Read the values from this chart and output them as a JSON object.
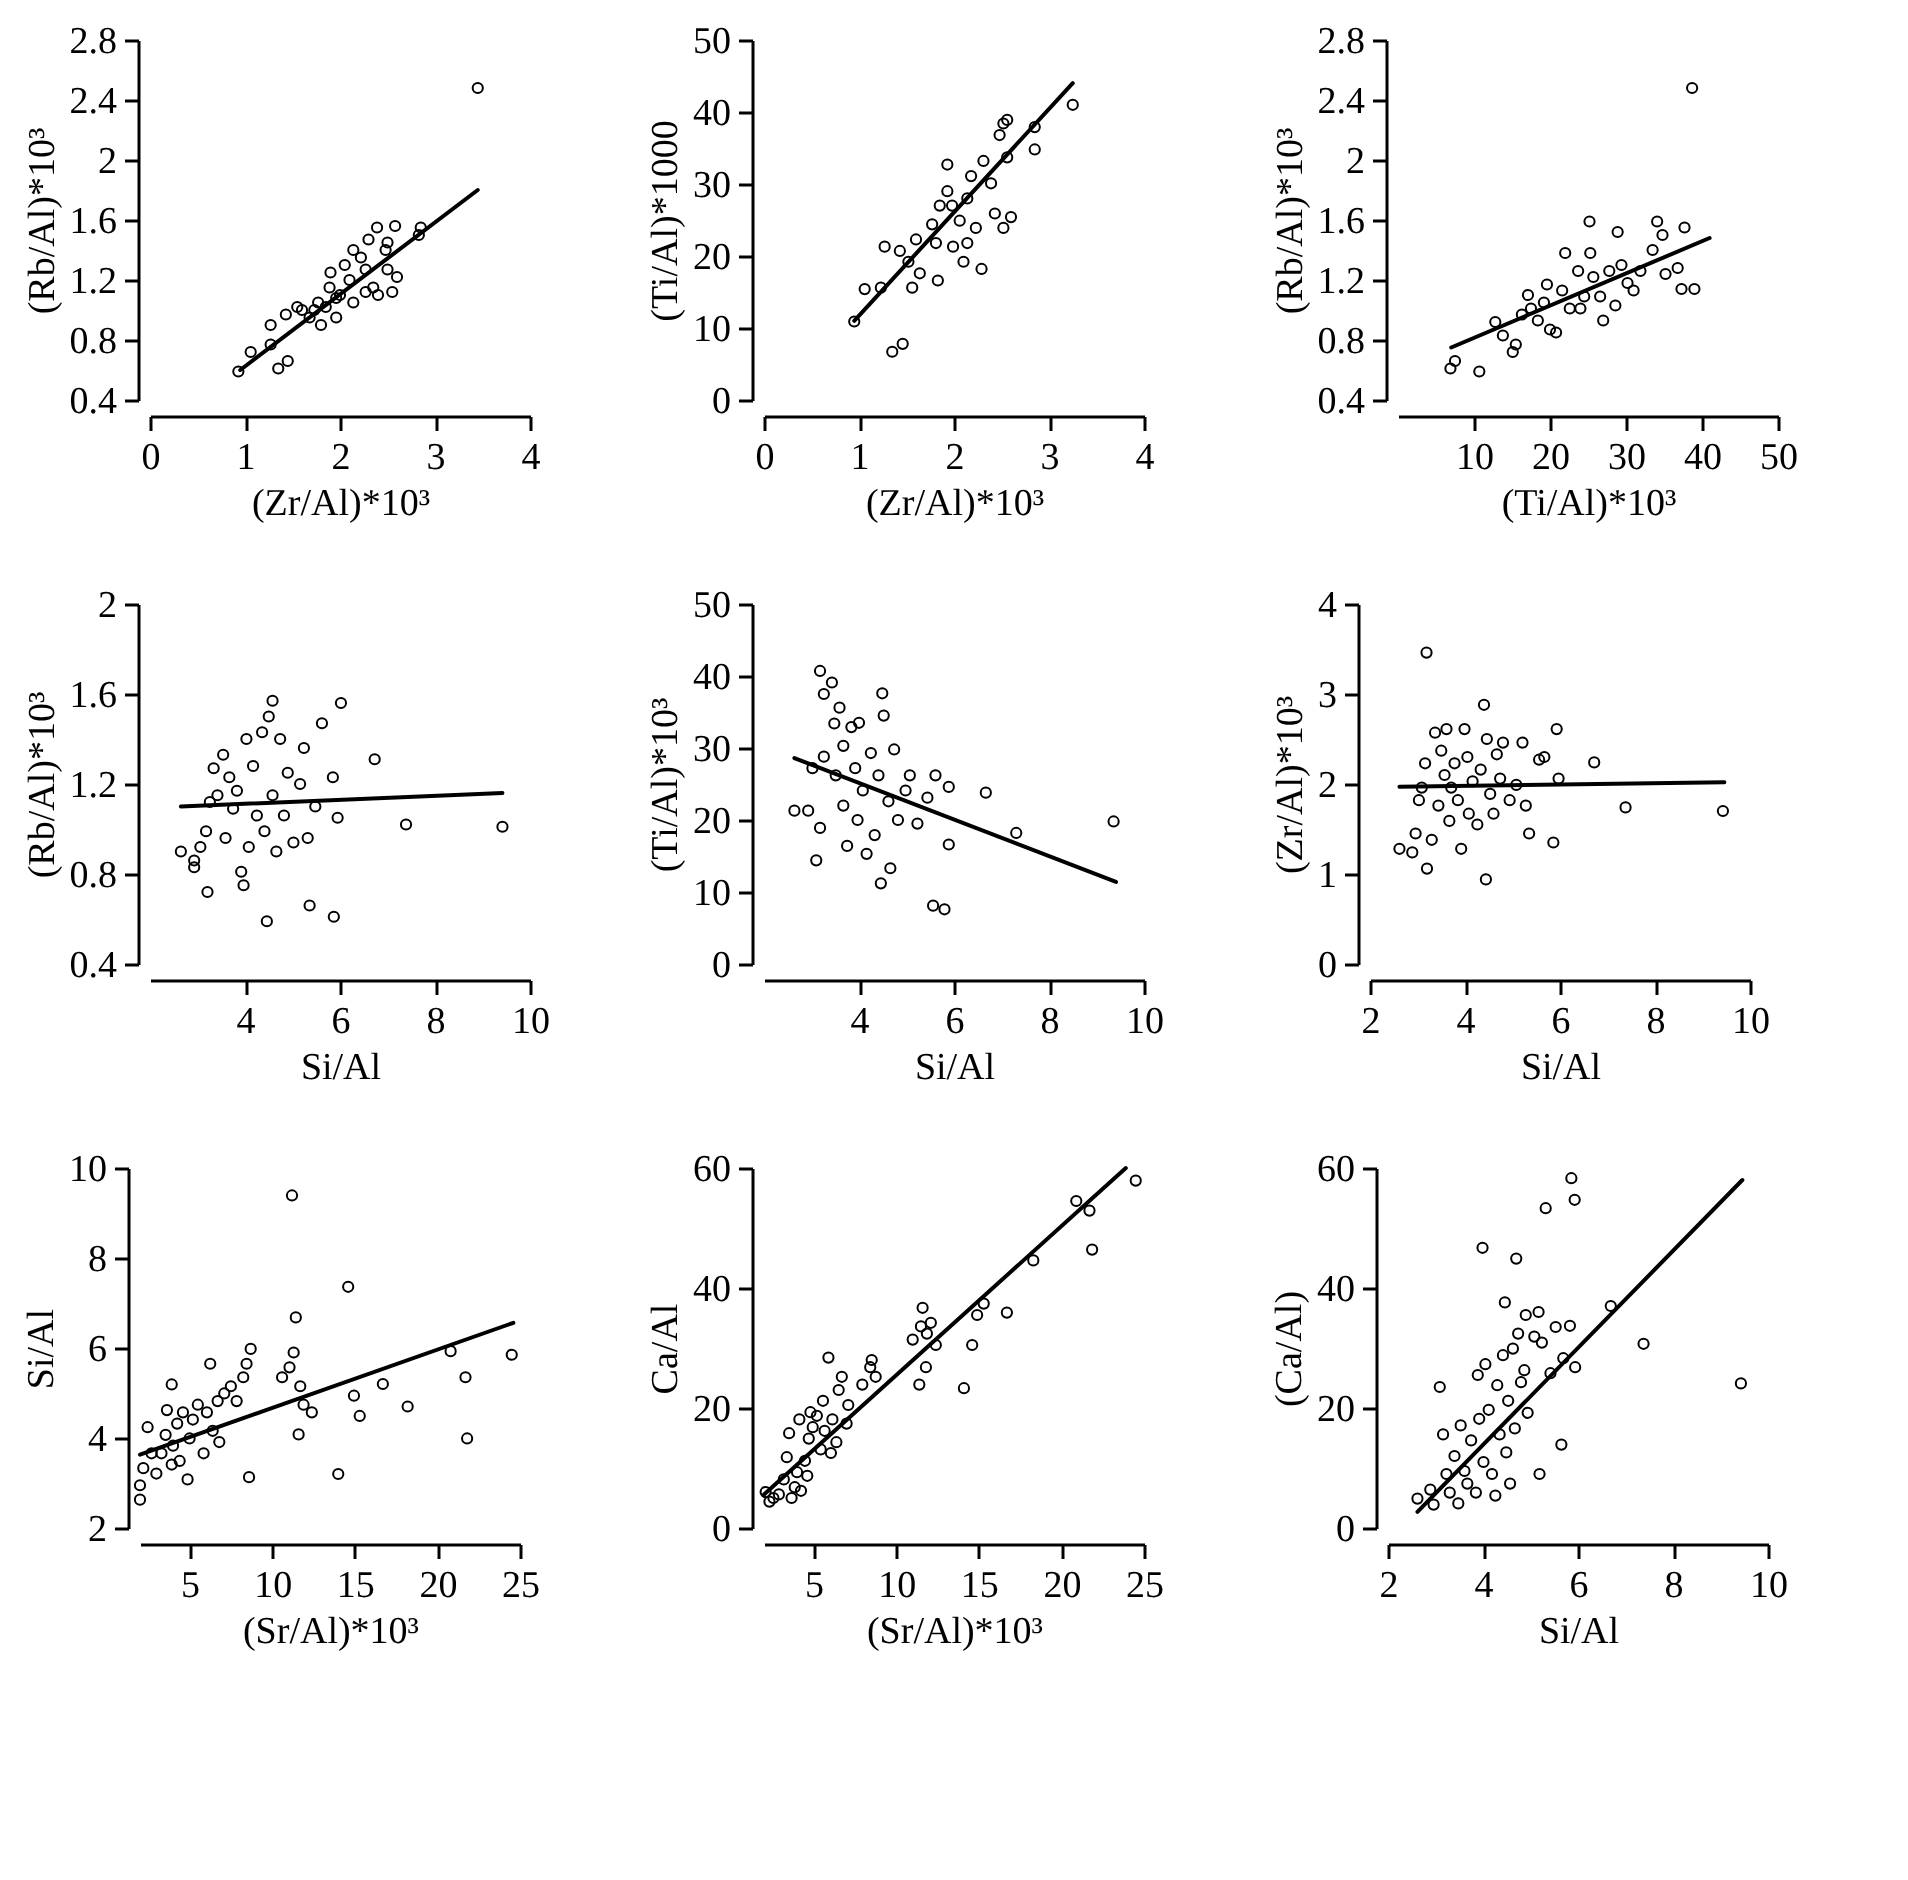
{
  "chart_data": [
    {
      "type": "scatter",
      "xlabel": "(Zr/Al)*10³",
      "ylabel": "(Rb/Al)*10³",
      "xlim": [
        0,
        4
      ],
      "xticks": [
        0,
        1,
        2,
        3,
        4
      ],
      "ylim": [
        0.4,
        2.8
      ],
      "yticks": [
        0.4,
        0.8,
        1.2,
        1.6,
        2,
        2.4,
        2.8
      ],
      "series": [
        {
          "color": "#000000",
          "marker": "circle",
          "x": [
            0.93,
            1.06,
            1.27,
            1.27,
            1.35,
            1.45,
            1.43,
            1.55,
            1.68,
            1.77,
            1.8,
            1.89,
            1.9,
            1.96,
            2.0,
            2.1,
            2.14,
            2.22,
            2.27,
            2.3,
            2.39,
            2.4,
            2.48,
            2.5,
            2.55,
            2.58,
            2.6,
            2.5,
            2.85,
            2.83,
            3.45,
            1.6,
            1.85,
            2.14,
            2.27,
            2.35,
            1.96,
            1.73,
            2.05
          ],
          "values": [
            0.59,
            0.72,
            0.77,
            0.9,
            0.61,
            0.66,
            0.97,
            1.02,
            0.95,
            1.05,
            0.9,
            1.15,
            1.25,
            0.95,
            1.1,
            1.2,
            1.05,
            1.35,
            1.12,
            1.47,
            1.55,
            1.1,
            1.4,
            1.27,
            1.12,
            1.56,
            1.22,
            1.45,
            1.55,
            1.5,
            2.48,
            1.0,
            1.02,
            1.4,
            1.27,
            1.15,
            1.08,
            1.0,
            1.3
          ]
        },
        {
          "type": "line",
          "color": "#000000",
          "x": [
            0.95,
            3.45
          ],
          "values": [
            0.6,
            1.8
          ]
        }
      ]
    },
    {
      "type": "scatter",
      "xlabel": "(Zr/Al)*10³",
      "ylabel": "(Ti/Al)*1000",
      "xlim": [
        0,
        4
      ],
      "xticks": [
        0,
        1,
        2,
        3,
        4
      ],
      "ylim": [
        0,
        50
      ],
      "yticks": [
        0,
        10,
        20,
        30,
        40,
        50
      ],
      "series": [
        {
          "color": "#000000",
          "marker": "circle",
          "x": [
            0.95,
            1.06,
            1.23,
            1.27,
            1.35,
            1.46,
            1.43,
            1.52,
            1.6,
            1.64,
            1.77,
            1.83,
            1.85,
            1.93,
            1.99,
            2.06,
            2.1,
            2.14,
            2.18,
            2.23,
            2.29,
            2.31,
            2.39,
            2.43,
            2.48,
            2.52,
            2.56,
            2.52,
            2.6,
            2.56,
            2.85,
            2.85,
            3.25,
            1.81,
            1.98,
            2.14,
            1.56,
            1.93
          ],
          "values": [
            10.9,
            15.4,
            15.6,
            21.3,
            6.7,
            7.8,
            20.7,
            19.2,
            22.3,
            17.6,
            24.4,
            16.6,
            27,
            29,
            21.3,
            24.9,
            19.2,
            28,
            31.1,
            23.9,
            18.2,
            33.2,
            30.1,
            25.9,
            36.8,
            38.4,
            38.9,
            23.9,
            25.4,
            33.7,
            37.9,
            34.8,
            41,
            21.8,
            27,
            21.8,
            15.6,
            32.7
          ]
        },
        {
          "type": "line",
          "color": "#000000",
          "x": [
            0.95,
            3.25
          ],
          "values": [
            11,
            44
          ]
        }
      ]
    },
    {
      "type": "scatter",
      "xlabel": "(Ti/Al)*10³",
      "ylabel": "(Rb/Al)*10³",
      "xlim": [
        0,
        50
      ],
      "xticks": [
        10,
        20,
        30,
        40,
        50
      ],
      "ylim": [
        0.4,
        2.8
      ],
      "yticks": [
        0.4,
        0.8,
        1.2,
        1.6,
        2,
        2.4,
        2.8
      ],
      "series": [
        {
          "color": "#000000",
          "marker": "circle",
          "x": [
            6.9,
            7.5,
            10.7,
            12.8,
            13.8,
            15.1,
            15.5,
            16.3,
            17.1,
            18.4,
            19.2,
            19.6,
            20,
            20.8,
            21.6,
            22,
            22.6,
            23.7,
            24.5,
            25.2,
            25.3,
            25.7,
            26.6,
            27,
            27.8,
            28.6,
            28.9,
            29.4,
            30.2,
            31,
            31.9,
            33.5,
            34.1,
            34.8,
            35.2,
            36.8,
            37.7,
            37.3,
            39,
            38.7,
            24,
            17.5
          ],
          "values": [
            0.61,
            0.66,
            0.59,
            0.92,
            0.83,
            0.72,
            0.77,
            0.97,
            1.1,
            0.93,
            1.05,
            1.17,
            0.87,
            0.85,
            1.13,
            1.38,
            1.01,
            1.26,
            1.09,
            1.59,
            1.38,
            1.22,
            1.09,
            0.93,
            1.26,
            1.03,
            1.52,
            1.3,
            1.18,
            1.13,
            1.26,
            1.4,
            1.59,
            1.5,
            1.24,
            1.28,
            1.55,
            1.14,
            1.14,
            2.48,
            1.01,
            1.01
          ]
        },
        {
          "type": "line",
          "color": "#000000",
          "x": [
            7,
            41
          ],
          "values": [
            0.75,
            1.48
          ]
        }
      ]
    },
    {
      "type": "scatter",
      "xlabel": "Si/Al",
      "ylabel": "(Rb/Al)*10³",
      "xlim": [
        2,
        10
      ],
      "xticks": [
        4,
        6,
        8,
        10
      ],
      "ylim": [
        0.4,
        2
      ],
      "yticks": [
        0.4,
        0.8,
        1.2,
        1.6,
        2
      ],
      "series": [
        {
          "color": "#000000",
          "marker": "circle",
          "x": [
            2.65,
            2.93,
            2.93,
            3.06,
            3.21,
            3.18,
            3.26,
            3.34,
            3.42,
            3.54,
            3.59,
            3.67,
            3.75,
            3.83,
            3.92,
            3.97,
            4.03,
            4.08,
            4.17,
            4.25,
            4.36,
            4.41,
            4.46,
            4.5,
            4.58,
            4.58,
            4.66,
            4.74,
            4.82,
            4.9,
            5.02,
            5.16,
            5.24,
            5.32,
            5.36,
            5.48,
            5.62,
            5.85,
            5.87,
            5.95,
            6.02,
            6.73,
            7.39,
            9.42
          ],
          "values": [
            0.9,
            0.86,
            0.83,
            0.92,
            0.72,
            0.99,
            1.12,
            1.27,
            1.15,
            1.33,
            0.96,
            1.23,
            1.09,
            1.17,
            0.81,
            0.75,
            1.4,
            0.92,
            1.28,
            1.06,
            1.43,
            0.99,
            0.59,
            1.5,
            1.57,
            1.15,
            0.9,
            1.4,
            1.06,
            1.25,
            0.94,
            1.2,
            1.36,
            0.96,
            0.66,
            1.1,
            1.47,
            1.23,
            0.61,
            1.05,
            1.56,
            1.31,
            1.02,
            1.01
          ]
        },
        {
          "type": "line",
          "color": "#000000",
          "x": [
            2.65,
            9.42
          ],
          "values": [
            1.1,
            1.16
          ]
        }
      ]
    },
    {
      "type": "scatter",
      "xlabel": "Si/Al",
      "ylabel": "(Ti/Al)*10³",
      "xlim": [
        2,
        10
      ],
      "xticks": [
        4,
        6,
        8,
        10
      ],
      "ylim": [
        0,
        50
      ],
      "yticks": [
        0,
        10,
        20,
        30,
        40,
        50
      ],
      "series": [
        {
          "color": "#000000",
          "marker": "circle",
          "x": [
            2.64,
            2.93,
            3.1,
            3.18,
            3.18,
            3.26,
            3.26,
            3.43,
            3.48,
            3.51,
            3.59,
            3.67,
            3.67,
            3.75,
            3.84,
            3.92,
            3.97,
            4,
            4.08,
            4.16,
            4.25,
            4.33,
            4.41,
            4.46,
            4.49,
            4.52,
            4.62,
            4.66,
            4.74,
            4.82,
            5.07,
            5.23,
            5.44,
            5.56,
            5.61,
            5.89,
            5.8,
            5.89,
            6.67,
            7.31,
            9.36,
            3.02,
            4.98
          ],
          "values": [
            21.3,
            21.3,
            14.4,
            40.7,
            18.9,
            37.5,
            28.8,
            39.1,
            33.4,
            26.2,
            35.6,
            30.3,
            22,
            16.4,
            32.9,
            27.2,
            20,
            33.5,
            24.1,
            15.3,
            29.3,
            17.9,
            26.2,
            11.2,
            37.6,
            34.5,
            22.6,
            13.3,
            29.8,
            20,
            26.2,
            19.5,
            23.1,
            8.1,
            26.2,
            24.6,
            7.6,
            16.6,
            23.8,
            18.2,
            19.8,
            27.2,
            24.1
          ]
        },
        {
          "type": "line",
          "color": "#000000",
          "x": [
            2.64,
            9.41
          ],
          "values": [
            28.6,
            11.4
          ]
        }
      ]
    },
    {
      "type": "scatter",
      "xlabel": "Si/Al",
      "ylabel": "(Zr/Al)*10³",
      "xlim": [
        2,
        10
      ],
      "xticks": [
        2,
        4,
        6,
        8,
        10
      ],
      "ylim": [
        0,
        4
      ],
      "yticks": [
        0,
        1,
        2,
        3,
        4
      ],
      "series": [
        {
          "color": "#000000",
          "marker": "circle",
          "x": [
            2.62,
            2.89,
            2.96,
            3.03,
            3.09,
            3.16,
            3.19,
            3.2,
            3.3,
            3.37,
            3.44,
            3.5,
            3.57,
            3.61,
            3.67,
            3.71,
            3.78,
            3.85,
            3.92,
            3.99,
            4.05,
            4.08,
            4.16,
            4.26,
            4.33,
            4.4,
            4.44,
            4.46,
            4.53,
            4.6,
            4.67,
            4.74,
            4.8,
            4.94,
            5.08,
            5.21,
            5.28,
            5.35,
            5.56,
            5.67,
            5.86,
            5.93,
            5.97,
            6.72,
            7.38,
            9.43
          ],
          "values": [
            1.28,
            1.24,
            1.45,
            1.82,
            1.96,
            2.23,
            3.46,
            1.06,
            1.38,
            2.57,
            1.76,
            2.37,
            2.1,
            2.61,
            1.59,
            1.96,
            2.23,
            1.82,
            1.28,
            2.61,
            2.3,
            1.67,
            2.03,
            1.55,
            2.16,
            2.88,
            0.94,
            2.5,
            1.89,
            1.67,
            2.33,
            2.06,
            2.46,
            1.82,
            1.99,
            2.46,
            1.76,
            1.45,
            2.27,
            2.3,
            1.35,
            2.61,
            2.06,
            2.24,
            1.74,
            1.7
          ]
        },
        {
          "type": "line",
          "color": "#000000",
          "x": [
            2.62,
            9.46
          ],
          "values": [
            1.97,
            2.02
          ]
        }
      ]
    },
    {
      "type": "scatter",
      "xlabel": "(Sr/Al)*10³",
      "ylabel": "Si/Al",
      "xlim": [
        2,
        25
      ],
      "xticks": [
        5,
        10,
        15,
        20,
        25
      ],
      "ylim": [
        2,
        10
      ],
      "yticks": [
        2,
        4,
        6,
        8,
        10
      ],
      "series": [
        {
          "color": "#000000",
          "marker": "circle",
          "x": [
            2.0,
            2.0,
            2.2,
            2.46,
            2.7,
            2.99,
            3.3,
            3.55,
            3.63,
            3.92,
            4,
            3.92,
            4.25,
            4.4,
            4.6,
            4.88,
            5,
            5.2,
            5.5,
            5.85,
            6.05,
            6.25,
            6.4,
            6.7,
            6.8,
            7.1,
            7.5,
            7.85,
            8.25,
            8.45,
            8.6,
            8.7,
            10.6,
            11.05,
            11.2,
            11.3,
            11.43,
            11.6,
            11.7,
            11.9,
            12.4,
            14,
            14.6,
            14.95,
            15.3,
            16.7,
            18.2,
            20.8,
            21.7,
            21.8,
            24.5
          ],
          "values": [
            2.63,
            2.95,
            3.33,
            4.24,
            3.66,
            3.21,
            3.66,
            4.07,
            4.62,
            3.41,
            3.83,
            5.19,
            4.32,
            3.49,
            4.57,
            3.08,
            3.99,
            4.41,
            4.74,
            3.66,
            4.57,
            5.65,
            4.16,
            4.82,
            3.91,
            4.99,
            5.15,
            4.82,
            5.35,
            5.65,
            3.13,
            5.98,
            5.35,
            5.57,
            9.39,
            5.9,
            6.68,
            4.08,
            5.15,
            4.74,
            4.57,
            3.2,
            7.36,
            4.94,
            4.49,
            5.2,
            4.7,
            5.93,
            5.35,
            3.99,
            5.85
          ]
        },
        {
          "type": "line",
          "color": "#000000",
          "x": [
            2.0,
            24.6
          ],
          "values": [
            3.63,
            6.56
          ]
        }
      ]
    },
    {
      "type": "scatter",
      "xlabel": "(Sr/Al)*10³",
      "ylabel": "Ca/Al",
      "xlim": [
        2,
        25
      ],
      "xticks": [
        5,
        10,
        15,
        20,
        25
      ],
      "ylim": [
        0,
        60
      ],
      "yticks": [
        0,
        20,
        40,
        60
      ],
      "series": [
        {
          "color": "#000000",
          "marker": "circle",
          "x": [
            2.1,
            2.33,
            2.57,
            2.9,
            3.2,
            3.38,
            3.52,
            3.67,
            3.86,
            4,
            4.14,
            4.24,
            4.48,
            4.62,
            4.71,
            4.81,
            4.95,
            5.2,
            5.43,
            5.57,
            5.67,
            5.9,
            6.05,
            6.14,
            6.38,
            6.52,
            6.71,
            7,
            7.1,
            7.95,
            8.43,
            8.52,
            8.76,
            11,
            11.4,
            11.5,
            11.6,
            11.86,
            11.8,
            12.1,
            12.4,
            14.1,
            14.6,
            14.9,
            15.3,
            16.7,
            18.3,
            20.9,
            21.7,
            21.86,
            24.5
          ],
          "values": [
            6,
            4.4,
            5,
            5.6,
            8.1,
            11.8,
            15.8,
            5,
            6.8,
            9.3,
            18.1,
            6.2,
            11.2,
            8.7,
            14.9,
            19.3,
            16.8,
            18.7,
            13.1,
            21.2,
            16.2,
            28.4,
            12.5,
            18.1,
            14.3,
            23,
            25.2,
            17.4,
            20.5,
            23.9,
            26.8,
            28,
            25.2,
            31.4,
            23.9,
            33.6,
            36.7,
            32.4,
            26.8,
            34.2,
            30.5,
            23.3,
            30.5,
            35.5,
            37.4,
            35.9,
            44.6,
            54.5,
            52.9,
            46.4,
            57.9
          ]
        },
        {
          "type": "line",
          "color": "#000000",
          "x": [
            2,
            23.9
          ],
          "values": [
            5.6,
            60
          ]
        }
      ]
    },
    {
      "type": "scatter",
      "xlabel": "Si/Al",
      "ylabel": "(Ca/Al)",
      "xlim": [
        2,
        10
      ],
      "xticks": [
        2,
        4,
        6,
        8,
        10
      ],
      "ylim": [
        0,
        60
      ],
      "yticks": [
        0,
        20,
        40,
        60
      ],
      "series": [
        {
          "color": "#000000",
          "marker": "circle",
          "x": [
            2.62,
            2.89,
            2.96,
            3.09,
            3.16,
            3.23,
            3.3,
            3.4,
            3.48,
            3.53,
            3.61,
            3.67,
            3.75,
            3.85,
            3.89,
            3.92,
            3.99,
            4.01,
            4.05,
            4.12,
            4.19,
            4.26,
            4.3,
            4.35,
            4.42,
            4.46,
            4.49,
            4.53,
            4.57,
            4.63,
            4.67,
            4.7,
            4.74,
            4.8,
            4.87,
            4.9,
            4.94,
            5.08,
            5.17,
            5.19,
            5.24,
            5.32,
            5.42,
            5.53,
            5.65,
            5.83,
            5.86,
            5.93,
            5.94,
            6.69,
            7.38,
            9.43,
            5.69
          ],
          "values": [
            4.9,
            6.4,
            3.9,
            23.5,
            15.6,
            9,
            5.9,
            12,
            4.1,
            17.1,
            9.5,
            7.4,
            14.6,
            5.9,
            25.5,
            18.2,
            46.7,
            11,
            27.3,
            19.7,
            9,
            5.4,
            23.8,
            15.6,
            28.8,
            37.6,
            12.6,
            21.2,
            7.4,
            29.9,
            16.6,
            44.9,
            32.4,
            24.3,
            26.3,
            35.5,
            19.2,
            31.9,
            36,
            9,
            30.9,
            53.3,
            25.8,
            33.5,
            13.9,
            33.7,
            58.3,
            54.7,
            26.8,
            37,
            30.7,
            24.1,
            28.3
          ]
        },
        {
          "type": "line",
          "color": "#000000",
          "x": [
            2.62,
            9.46
          ],
          "values": [
            2.7,
            58
          ]
        }
      ]
    }
  ]
}
